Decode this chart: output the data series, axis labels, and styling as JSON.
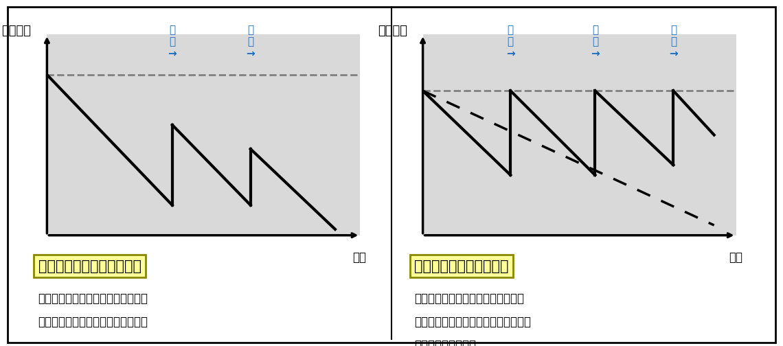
{
  "bg_color": "#ffffff",
  "chart_bg": "#d9d9d9",
  "border_color": "#000000",
  "line_color": "#000000",
  "dashed_color": "#808080",
  "annotation_color": "#1a6bbf",
  "ylabel_left": "井戸能力",
  "xlabel": "年数",
  "title1": "改修時期が適切でない場合",
  "title2": "適切なタイミングで改修",
  "desc1_line1": "回復できないレベルまで井戸能力が",
  "desc1_line2": "低下してしまうおそれがあります。",
  "desc2_line1": "改修のたびに井戸やポンプの能力が",
  "desc2_line2": "回復し、結果として井戸の寿命を延ば",
  "desc2_line3": "すことになります。",
  "annot_label": "改\n修\n→",
  "title_box_color": "#ffff99",
  "title_box_edge": "#666600"
}
